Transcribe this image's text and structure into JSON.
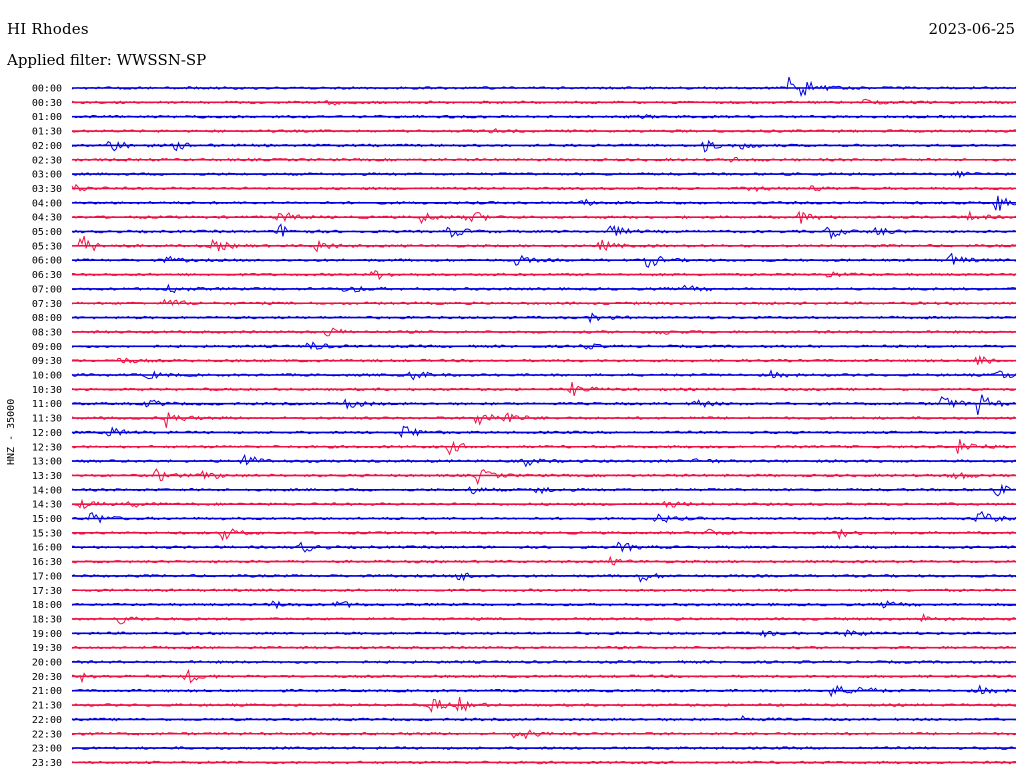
{
  "header": {
    "station": "HI Rhodes",
    "date": "2023-06-25",
    "filter_label": "Applied filter:",
    "filter_value": "WWSSN-SP"
  },
  "colors": {
    "even_row": "#0000dd",
    "odd_row": "#ee1144",
    "text": "#000000",
    "background": "#ffffff"
  },
  "chart_data": {
    "type": "line",
    "title": "HI Rhodes",
    "subtitle": "Applied filter: WWSSN-SP",
    "ylabel": "HNZ - 35000",
    "xlabel": "",
    "date": "2023-06-25",
    "rows": [
      {
        "label": "00:00",
        "color": "blue",
        "events": [
          {
            "t": 0.76,
            "amp": 1.0
          },
          {
            "t": 0.77,
            "amp": 0.7
          }
        ]
      },
      {
        "label": "00:30",
        "color": "red",
        "events": [
          {
            "t": 0.27,
            "amp": 0.25
          },
          {
            "t": 0.84,
            "amp": 0.2
          }
        ]
      },
      {
        "label": "01:00",
        "color": "blue",
        "events": [
          {
            "t": 0.6,
            "amp": 0.15
          }
        ]
      },
      {
        "label": "01:30",
        "color": "red",
        "events": [
          {
            "t": 0.44,
            "amp": 0.2
          }
        ]
      },
      {
        "label": "02:00",
        "color": "blue",
        "events": [
          {
            "t": 0.04,
            "amp": 0.7
          },
          {
            "t": 0.11,
            "amp": 0.4
          },
          {
            "t": 0.67,
            "amp": 0.5
          },
          {
            "t": 0.71,
            "amp": 0.3
          }
        ]
      },
      {
        "label": "02:30",
        "color": "red",
        "events": [
          {
            "t": 0.7,
            "amp": 0.2
          }
        ]
      },
      {
        "label": "03:00",
        "color": "blue",
        "events": [
          {
            "t": 0.94,
            "amp": 0.3
          }
        ]
      },
      {
        "label": "03:30",
        "color": "red",
        "events": [
          {
            "t": 0.0,
            "amp": 0.4
          },
          {
            "t": 0.72,
            "amp": 0.3
          },
          {
            "t": 0.78,
            "amp": 0.3
          }
        ]
      },
      {
        "label": "04:00",
        "color": "blue",
        "events": [
          {
            "t": 0.54,
            "amp": 0.3
          },
          {
            "t": 0.98,
            "amp": 1.0
          }
        ]
      },
      {
        "label": "04:30",
        "color": "red",
        "events": [
          {
            "t": 0.22,
            "amp": 0.6
          },
          {
            "t": 0.37,
            "amp": 0.5
          },
          {
            "t": 0.42,
            "amp": 0.8
          },
          {
            "t": 0.77,
            "amp": 0.6
          },
          {
            "t": 0.95,
            "amp": 0.4
          }
        ]
      },
      {
        "label": "05:00",
        "color": "blue",
        "events": [
          {
            "t": 0.22,
            "amp": 0.7
          },
          {
            "t": 0.4,
            "amp": 0.6
          },
          {
            "t": 0.57,
            "amp": 0.6
          },
          {
            "t": 0.8,
            "amp": 0.7
          },
          {
            "t": 0.85,
            "amp": 0.5
          }
        ]
      },
      {
        "label": "05:30",
        "color": "red",
        "events": [
          {
            "t": 0.01,
            "amp": 1.0
          },
          {
            "t": 0.15,
            "amp": 0.6
          },
          {
            "t": 0.26,
            "amp": 0.6
          },
          {
            "t": 0.56,
            "amp": 0.5
          }
        ]
      },
      {
        "label": "06:00",
        "color": "blue",
        "events": [
          {
            "t": 0.1,
            "amp": 0.3
          },
          {
            "t": 0.47,
            "amp": 0.5
          },
          {
            "t": 0.61,
            "amp": 0.7
          },
          {
            "t": 0.93,
            "amp": 0.6
          }
        ]
      },
      {
        "label": "06:30",
        "color": "red",
        "events": [
          {
            "t": 0.32,
            "amp": 0.5
          },
          {
            "t": 0.8,
            "amp": 0.3
          }
        ]
      },
      {
        "label": "07:00",
        "color": "blue",
        "events": [
          {
            "t": 0.1,
            "amp": 0.5
          },
          {
            "t": 0.29,
            "amp": 0.5
          },
          {
            "t": 0.65,
            "amp": 0.3
          }
        ]
      },
      {
        "label": "07:30",
        "color": "red",
        "events": [
          {
            "t": 0.1,
            "amp": 0.5
          }
        ]
      },
      {
        "label": "08:00",
        "color": "blue",
        "events": [
          {
            "t": 0.55,
            "amp": 0.4
          }
        ]
      },
      {
        "label": "08:30",
        "color": "red",
        "events": [
          {
            "t": 0.27,
            "amp": 0.5
          },
          {
            "t": 0.62,
            "amp": 0.3
          }
        ]
      },
      {
        "label": "09:00",
        "color": "blue",
        "events": [
          {
            "t": 0.25,
            "amp": 0.5
          },
          {
            "t": 0.54,
            "amp": 0.3
          }
        ]
      },
      {
        "label": "09:30",
        "color": "red",
        "events": [
          {
            "t": 0.05,
            "amp": 0.3
          },
          {
            "t": 0.96,
            "amp": 0.7
          }
        ]
      },
      {
        "label": "10:00",
        "color": "blue",
        "events": [
          {
            "t": 0.08,
            "amp": 0.4
          },
          {
            "t": 0.36,
            "amp": 0.5
          },
          {
            "t": 0.74,
            "amp": 0.3
          },
          {
            "t": 0.98,
            "amp": 0.6
          }
        ]
      },
      {
        "label": "10:30",
        "color": "red",
        "events": [
          {
            "t": 0.53,
            "amp": 0.6
          }
        ]
      },
      {
        "label": "11:00",
        "color": "blue",
        "events": [
          {
            "t": 0.08,
            "amp": 0.4
          },
          {
            "t": 0.29,
            "amp": 0.6
          },
          {
            "t": 0.66,
            "amp": 0.4
          },
          {
            "t": 0.92,
            "amp": 0.9
          },
          {
            "t": 0.96,
            "amp": 1.0
          }
        ]
      },
      {
        "label": "11:30",
        "color": "red",
        "events": [
          {
            "t": 0.1,
            "amp": 0.8
          },
          {
            "t": 0.43,
            "amp": 1.0
          },
          {
            "t": 0.46,
            "amp": 0.5
          }
        ]
      },
      {
        "label": "12:00",
        "color": "blue",
        "events": [
          {
            "t": 0.04,
            "amp": 0.5
          },
          {
            "t": 0.35,
            "amp": 0.8
          }
        ]
      },
      {
        "label": "12:30",
        "color": "red",
        "events": [
          {
            "t": 0.4,
            "amp": 0.6
          },
          {
            "t": 0.94,
            "amp": 0.9
          }
        ]
      },
      {
        "label": "13:00",
        "color": "blue",
        "events": [
          {
            "t": 0.18,
            "amp": 0.8
          },
          {
            "t": 0.48,
            "amp": 0.4
          },
          {
            "t": 0.66,
            "amp": 0.3
          }
        ]
      },
      {
        "label": "13:30",
        "color": "red",
        "events": [
          {
            "t": 0.09,
            "amp": 0.6
          },
          {
            "t": 0.14,
            "amp": 0.5
          },
          {
            "t": 0.43,
            "amp": 0.7
          },
          {
            "t": 0.93,
            "amp": 0.6
          }
        ]
      },
      {
        "label": "14:00",
        "color": "blue",
        "events": [
          {
            "t": 0.42,
            "amp": 0.4
          },
          {
            "t": 0.49,
            "amp": 0.5
          },
          {
            "t": 0.98,
            "amp": 0.5
          }
        ]
      },
      {
        "label": "14:30",
        "color": "red",
        "events": [
          {
            "t": 0.01,
            "amp": 0.4
          },
          {
            "t": 0.06,
            "amp": 0.3
          },
          {
            "t": 0.63,
            "amp": 0.3
          }
        ]
      },
      {
        "label": "15:00",
        "color": "blue",
        "events": [
          {
            "t": 0.02,
            "amp": 0.7
          },
          {
            "t": 0.62,
            "amp": 0.5
          },
          {
            "t": 0.96,
            "amp": 0.8
          }
        ]
      },
      {
        "label": "15:30",
        "color": "red",
        "events": [
          {
            "t": 0.16,
            "amp": 0.6
          },
          {
            "t": 0.67,
            "amp": 0.5
          },
          {
            "t": 0.81,
            "amp": 0.5
          }
        ]
      },
      {
        "label": "16:00",
        "color": "blue",
        "events": [
          {
            "t": 0.24,
            "amp": 0.6
          },
          {
            "t": 0.58,
            "amp": 0.5
          }
        ]
      },
      {
        "label": "16:30",
        "color": "red",
        "events": [
          {
            "t": 0.57,
            "amp": 0.3
          }
        ]
      },
      {
        "label": "17:00",
        "color": "blue",
        "events": [
          {
            "t": 0.41,
            "amp": 0.5
          },
          {
            "t": 0.6,
            "amp": 0.6
          }
        ]
      },
      {
        "label": "17:30",
        "color": "red",
        "events": []
      },
      {
        "label": "18:00",
        "color": "blue",
        "events": [
          {
            "t": 0.21,
            "amp": 0.4
          },
          {
            "t": 0.28,
            "amp": 0.4
          },
          {
            "t": 0.86,
            "amp": 0.3
          }
        ]
      },
      {
        "label": "18:30",
        "color": "red",
        "events": [
          {
            "t": 0.05,
            "amp": 0.5
          },
          {
            "t": 0.9,
            "amp": 0.4
          }
        ]
      },
      {
        "label": "19:00",
        "color": "blue",
        "events": [
          {
            "t": 0.73,
            "amp": 0.3
          },
          {
            "t": 0.82,
            "amp": 0.4
          }
        ]
      },
      {
        "label": "19:30",
        "color": "red",
        "events": []
      },
      {
        "label": "20:00",
        "color": "blue",
        "events": []
      },
      {
        "label": "20:30",
        "color": "red",
        "events": [
          {
            "t": 0.01,
            "amp": 0.4
          },
          {
            "t": 0.12,
            "amp": 0.7
          }
        ]
      },
      {
        "label": "21:00",
        "color": "blue",
        "events": [
          {
            "t": 0.8,
            "amp": 0.9
          },
          {
            "t": 0.83,
            "amp": 0.6
          },
          {
            "t": 0.96,
            "amp": 0.4
          }
        ]
      },
      {
        "label": "21:30",
        "color": "red",
        "events": [
          {
            "t": 0.38,
            "amp": 0.8
          },
          {
            "t": 0.41,
            "amp": 0.6
          }
        ]
      },
      {
        "label": "22:00",
        "color": "blue",
        "events": [
          {
            "t": 0.71,
            "amp": 0.3
          }
        ]
      },
      {
        "label": "22:30",
        "color": "red",
        "events": [
          {
            "t": 0.47,
            "amp": 0.9
          }
        ]
      },
      {
        "label": "23:00",
        "color": "blue",
        "events": []
      },
      {
        "label": "23:30",
        "color": "red",
        "events": []
      }
    ]
  }
}
